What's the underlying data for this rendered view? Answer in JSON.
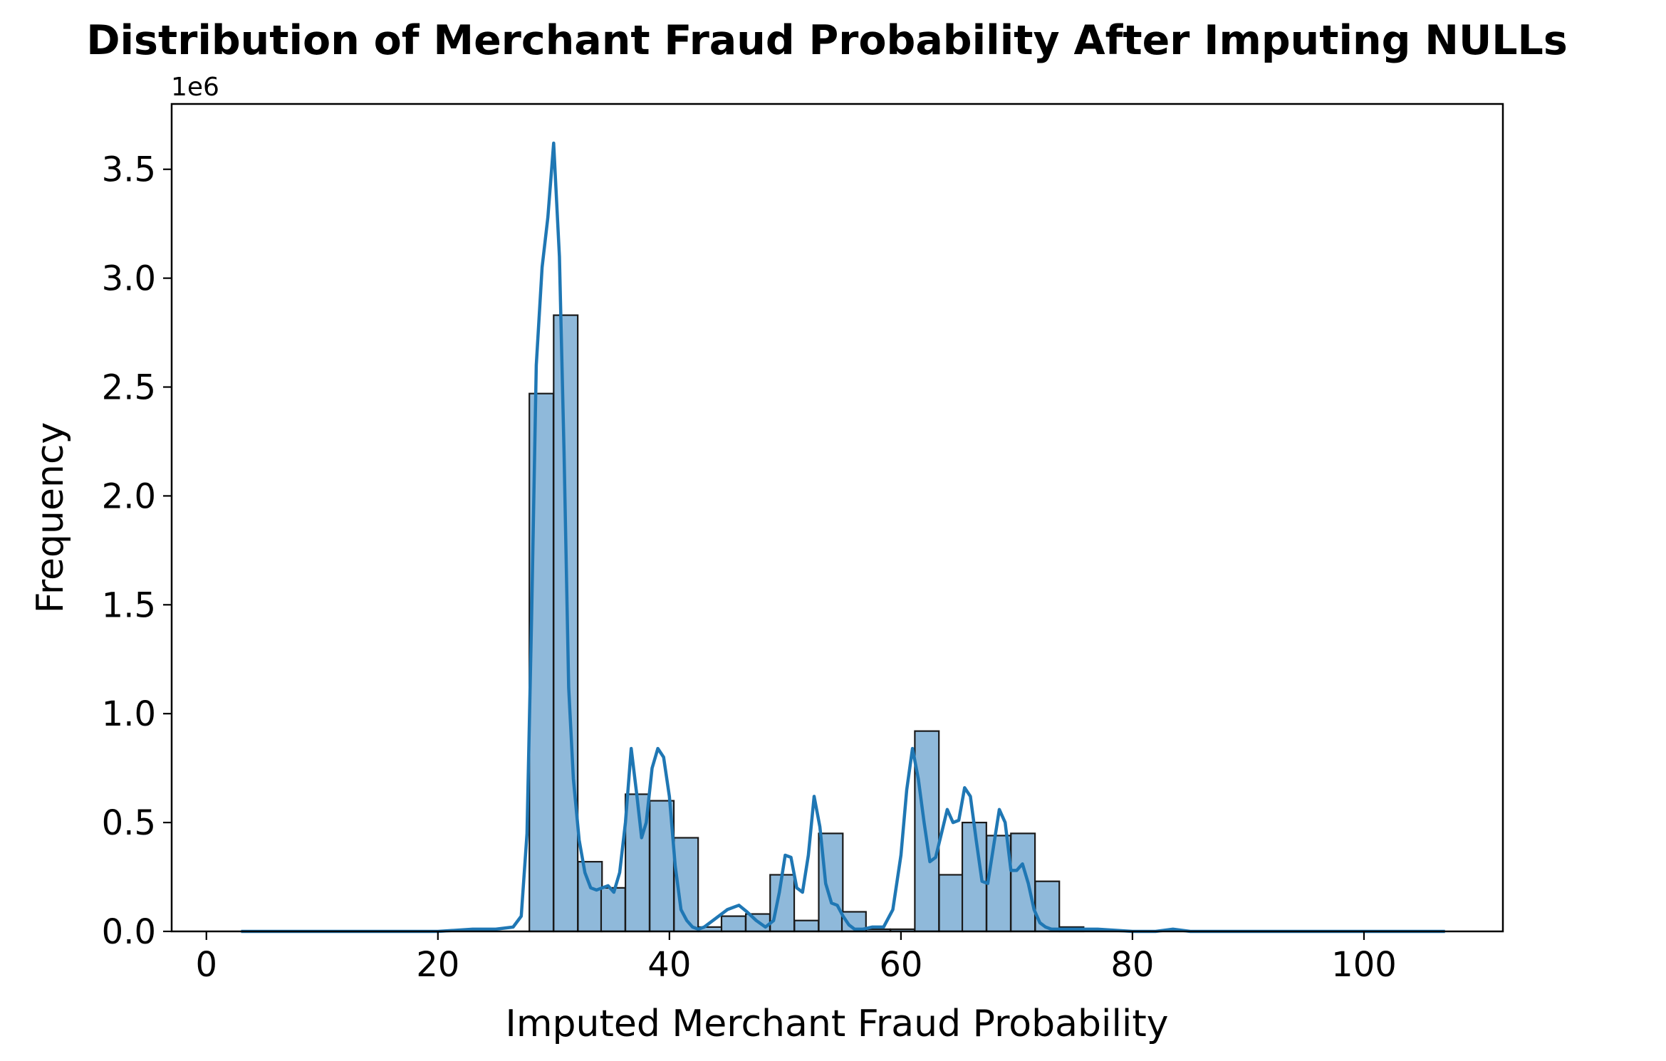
{
  "chart_data": {
    "type": "bar",
    "title": "Distribution of Merchant Fraud Probability After Imputing NULLs",
    "xlabel": "Imputed Merchant Fraud Probability",
    "ylabel": "Frequency",
    "y_offset_label": "1e6",
    "xlim": [
      -3,
      112
    ],
    "ylim": [
      0,
      3.8
    ],
    "x_ticks": [
      0,
      20,
      40,
      60,
      80,
      100
    ],
    "x_tick_labels": [
      "0",
      "20",
      "40",
      "60",
      "80",
      "100"
    ],
    "y_ticks": [
      0,
      0.5,
      1.0,
      1.5,
      2.0,
      2.5,
      3.0,
      3.5
    ],
    "y_tick_labels": [
      "0.0",
      "0.5",
      "1.0",
      "1.5",
      "2.0",
      "2.5",
      "3.0",
      "3.5"
    ],
    "grid": false,
    "bar_color": "#8fb9da",
    "bar_edge_color": "#1a1a1a",
    "line_color": "#1f77b4",
    "bin_width": 2.08,
    "bins": [
      {
        "x0": 27.9,
        "value": 2.47
      },
      {
        "x0": 30.0,
        "value": 2.83
      },
      {
        "x0": 32.1,
        "value": 0.32
      },
      {
        "x0": 34.1,
        "value": 0.2
      },
      {
        "x0": 36.2,
        "value": 0.63
      },
      {
        "x0": 38.3,
        "value": 0.6
      },
      {
        "x0": 40.4,
        "value": 0.43
      },
      {
        "x0": 42.5,
        "value": 0.02
      },
      {
        "x0": 44.5,
        "value": 0.07
      },
      {
        "x0": 46.6,
        "value": 0.08
      },
      {
        "x0": 48.7,
        "value": 0.26
      },
      {
        "x0": 50.8,
        "value": 0.05
      },
      {
        "x0": 52.9,
        "value": 0.45
      },
      {
        "x0": 54.9,
        "value": 0.09
      },
      {
        "x0": 57.0,
        "value": 0.01
      },
      {
        "x0": 59.1,
        "value": 0.01
      },
      {
        "x0": 61.2,
        "value": 0.92
      },
      {
        "x0": 63.3,
        "value": 0.26
      },
      {
        "x0": 65.3,
        "value": 0.5
      },
      {
        "x0": 67.4,
        "value": 0.44
      },
      {
        "x0": 69.5,
        "value": 0.45
      },
      {
        "x0": 71.6,
        "value": 0.23
      },
      {
        "x0": 73.7,
        "value": 0.02
      }
    ],
    "kde": {
      "x": [
        3,
        20,
        23,
        25,
        26.5,
        27.2,
        27.7,
        28.1,
        28.5,
        29.0,
        29.5,
        30.0,
        30.5,
        30.9,
        31.3,
        31.7,
        32.2,
        32.7,
        33.2,
        33.7,
        34.2,
        34.7,
        35.2,
        35.7,
        36.2,
        36.7,
        37.2,
        37.6,
        38.0,
        38.5,
        39.0,
        39.5,
        40.0,
        40.5,
        41.0,
        41.5,
        42.0,
        42.5,
        43.0,
        44.0,
        45.0,
        46.0,
        46.7,
        47.5,
        48.3,
        49.0,
        49.5,
        50.0,
        50.5,
        51.0,
        51.5,
        52.0,
        52.5,
        53.0,
        53.5,
        54.0,
        54.5,
        55.0,
        55.5,
        56.0,
        56.7,
        57.5,
        58.5,
        59.3,
        60.0,
        60.5,
        61.0,
        61.5,
        62.0,
        62.5,
        63.0,
        63.5,
        64.0,
        64.5,
        65.0,
        65.5,
        66.0,
        66.5,
        67.0,
        67.5,
        68.0,
        68.5,
        69.0,
        69.5,
        70.0,
        70.5,
        71.0,
        71.5,
        72.0,
        72.5,
        73.0,
        73.5,
        74.0,
        74.7,
        75.5,
        77.0,
        80.0,
        82.0,
        83.5,
        85.0,
        86.5,
        90.0,
        95.0,
        100.0,
        107.0
      ],
      "y": [
        0.0,
        0.0,
        0.01,
        0.01,
        0.02,
        0.07,
        0.45,
        1.45,
        2.6,
        3.05,
        3.28,
        3.62,
        3.1,
        2.2,
        1.12,
        0.7,
        0.42,
        0.27,
        0.2,
        0.19,
        0.2,
        0.21,
        0.18,
        0.27,
        0.5,
        0.84,
        0.62,
        0.43,
        0.5,
        0.75,
        0.84,
        0.8,
        0.62,
        0.3,
        0.1,
        0.05,
        0.02,
        0.01,
        0.02,
        0.06,
        0.1,
        0.12,
        0.09,
        0.05,
        0.02,
        0.05,
        0.18,
        0.35,
        0.34,
        0.2,
        0.18,
        0.35,
        0.62,
        0.48,
        0.22,
        0.13,
        0.12,
        0.07,
        0.03,
        0.01,
        0.01,
        0.02,
        0.02,
        0.1,
        0.35,
        0.65,
        0.84,
        0.7,
        0.5,
        0.32,
        0.34,
        0.45,
        0.56,
        0.5,
        0.51,
        0.66,
        0.62,
        0.42,
        0.23,
        0.22,
        0.39,
        0.56,
        0.5,
        0.28,
        0.28,
        0.31,
        0.22,
        0.1,
        0.04,
        0.02,
        0.01,
        0.01,
        0.01,
        0.01,
        0.01,
        0.01,
        0.0,
        0.0,
        0.01,
        0.0,
        0.0,
        0.0,
        0.0,
        0.0,
        0.0
      ]
    }
  }
}
